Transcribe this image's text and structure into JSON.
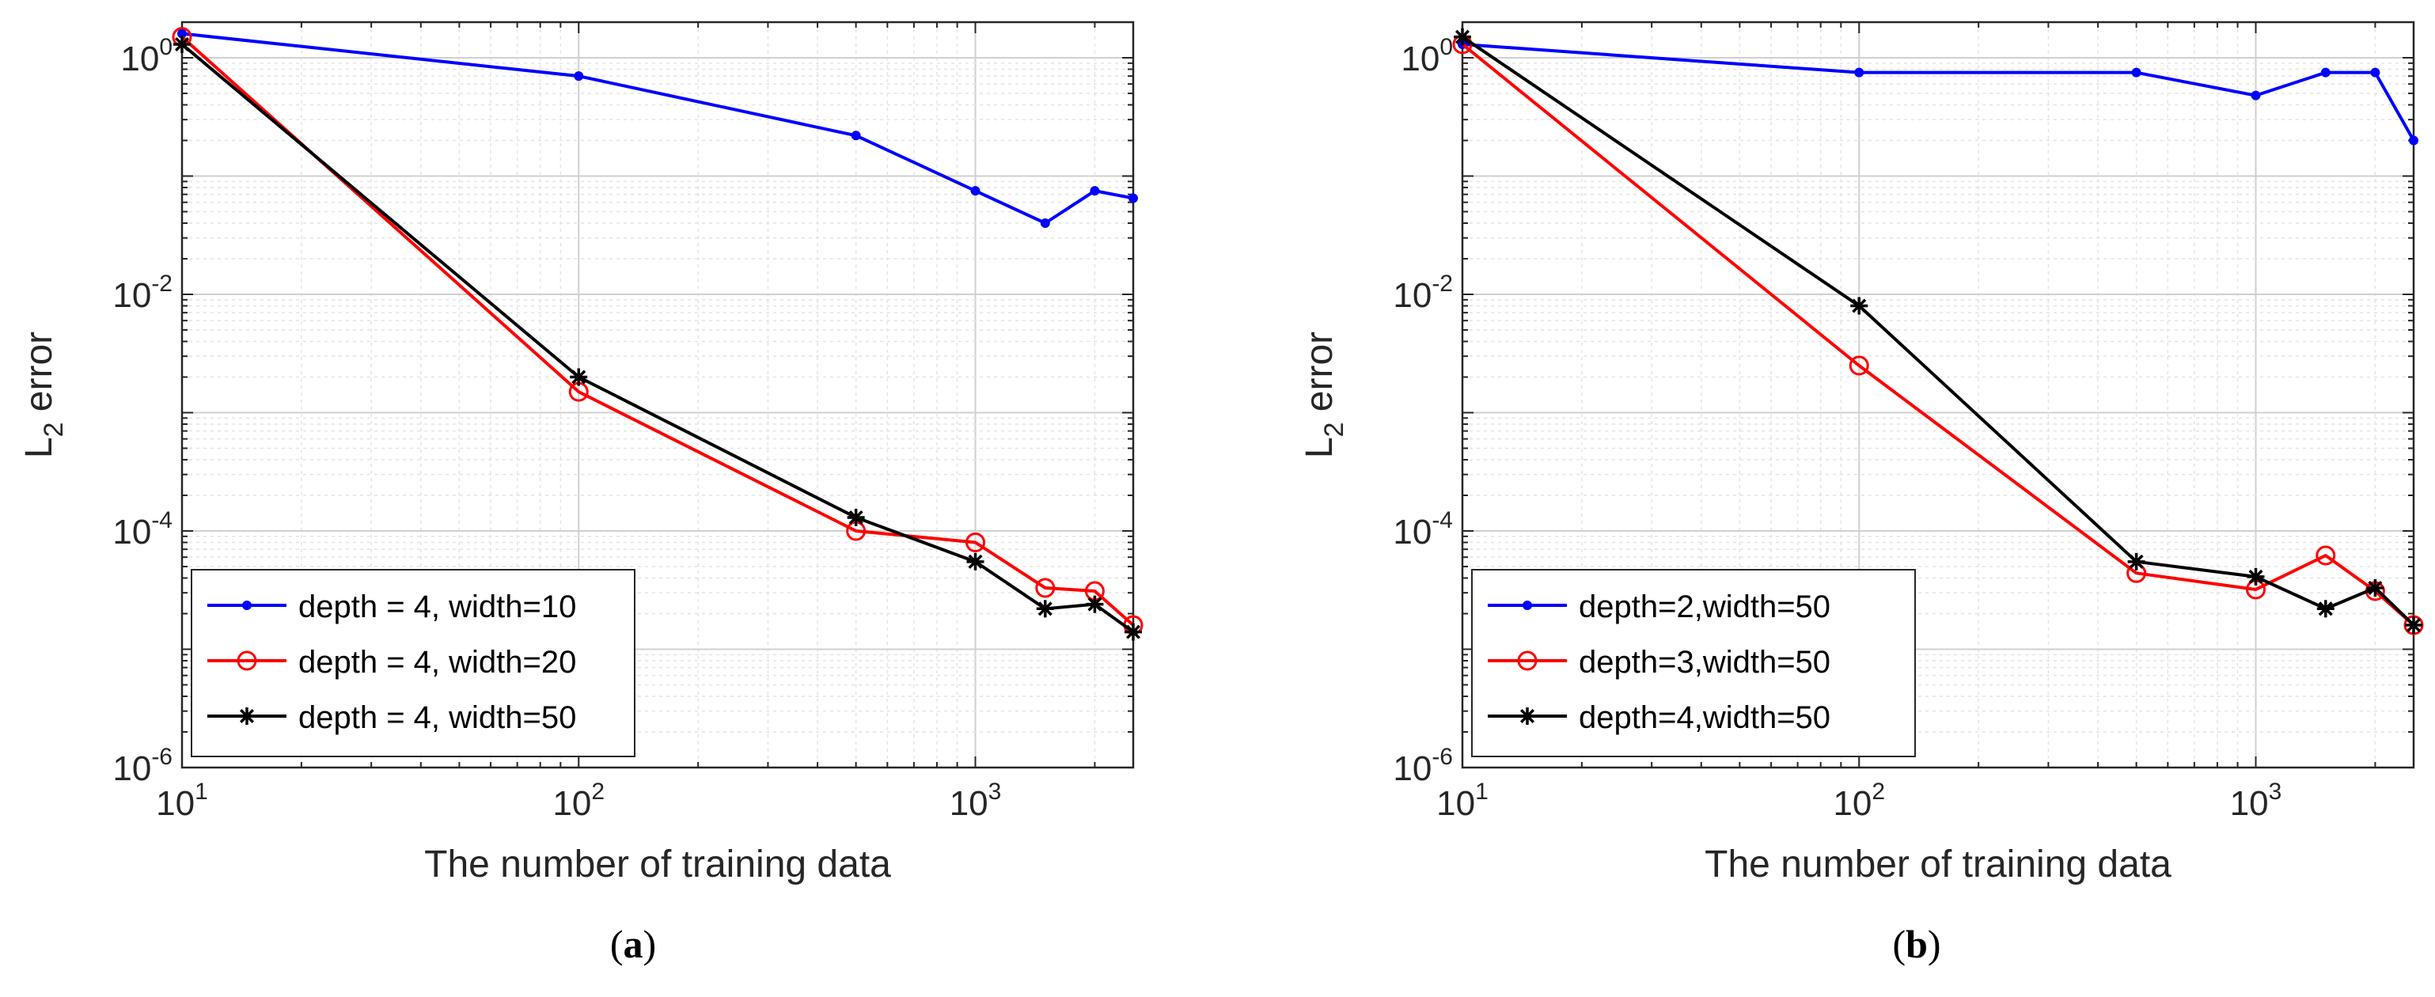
{
  "chart_data": [
    {
      "type": "line",
      "panel_label": "a",
      "title": "",
      "xlabel": "The number of training data",
      "ylabel": "L",
      "ylabel_subscript": "2",
      "ylabel_suffix": " error",
      "xscale": "log",
      "yscale": "log",
      "xlim": [
        10,
        2500
      ],
      "ylim": [
        1e-06,
        2
      ],
      "grid": true,
      "legend_position": "bottom-left",
      "x_ticks": [
        {
          "base": "10",
          "exp": "1"
        },
        {
          "base": "10",
          "exp": "2"
        },
        {
          "base": "10",
          "exp": "3"
        }
      ],
      "y_ticks": [
        {
          "base": "10",
          "exp": "-6"
        },
        {
          "base": "10",
          "exp": "-4"
        },
        {
          "base": "10",
          "exp": "-2"
        },
        {
          "base": "10",
          "exp": "0"
        }
      ],
      "x": [
        10,
        100,
        500,
        1000,
        1500,
        2000,
        2500
      ],
      "series": [
        {
          "name": "depth = 4, width=10",
          "color": "#0000ff",
          "marker": "dot",
          "values": [
            1.6,
            0.7,
            0.22,
            0.075,
            0.04,
            0.075,
            0.065
          ]
        },
        {
          "name": "depth = 4, width=20",
          "color": "#ff0000",
          "marker": "circle",
          "values": [
            1.5,
            0.0015,
            0.0001,
            8e-05,
            3.3e-05,
            3.1e-05,
            1.6e-05
          ]
        },
        {
          "name": "depth = 4, width=50",
          "color": "#000000",
          "marker": "asterisk",
          "values": [
            1.3,
            0.002,
            0.00013,
            5.5e-05,
            2.2e-05,
            2.4e-05,
            1.4e-05
          ]
        }
      ]
    },
    {
      "type": "line",
      "panel_label": "b",
      "title": "",
      "xlabel": "The number of training data",
      "ylabel": "L",
      "ylabel_subscript": "2",
      "ylabel_suffix": " error",
      "xscale": "log",
      "yscale": "log",
      "xlim": [
        10,
        2500
      ],
      "ylim": [
        1e-06,
        2
      ],
      "grid": true,
      "legend_position": "bottom-left",
      "x_ticks": [
        {
          "base": "10",
          "exp": "1"
        },
        {
          "base": "10",
          "exp": "2"
        },
        {
          "base": "10",
          "exp": "3"
        }
      ],
      "y_ticks": [
        {
          "base": "10",
          "exp": "-6"
        },
        {
          "base": "10",
          "exp": "-4"
        },
        {
          "base": "10",
          "exp": "-2"
        },
        {
          "base": "10",
          "exp": "0"
        }
      ],
      "x": [
        10,
        100,
        500,
        1000,
        1500,
        2000,
        2500
      ],
      "series": [
        {
          "name": "depth=2,width=50",
          "color": "#0000ff",
          "marker": "dot",
          "values": [
            1.3,
            0.75,
            0.75,
            0.48,
            0.75,
            0.75,
            0.2
          ]
        },
        {
          "name": "depth=3,width=50",
          "color": "#ff0000",
          "marker": "circle",
          "values": [
            1.3,
            0.0025,
            4.4e-05,
            3.2e-05,
            6.2e-05,
            3.1e-05,
            1.6e-05
          ]
        },
        {
          "name": "depth=4,width=50",
          "color": "#000000",
          "marker": "asterisk",
          "values": [
            1.5,
            0.008,
            5.5e-05,
            4.1e-05,
            2.2e-05,
            3.3e-05,
            1.6e-05
          ]
        }
      ]
    }
  ]
}
